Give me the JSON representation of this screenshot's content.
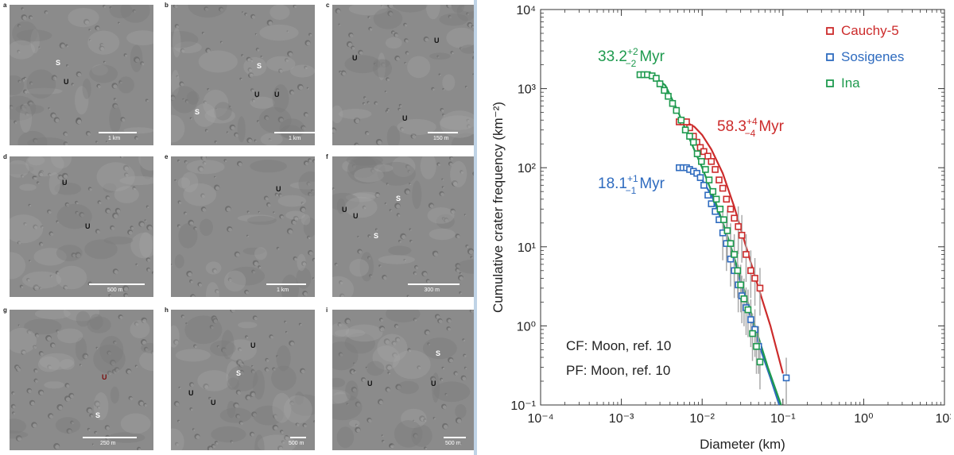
{
  "panels": [
    {
      "id": "a",
      "scale": "1 km",
      "labels": [
        {
          "t": "S",
          "c": "w"
        },
        {
          "t": "U",
          "c": "d"
        }
      ]
    },
    {
      "id": "b",
      "scale": "1 km",
      "labels": [
        {
          "t": "S",
          "c": "w"
        },
        {
          "t": "S",
          "c": "w"
        },
        {
          "t": "U",
          "c": "d"
        },
        {
          "t": "U",
          "c": "d"
        }
      ]
    },
    {
      "id": "c",
      "scale": "150 m",
      "labels": [
        {
          "t": "U",
          "c": "d"
        },
        {
          "t": "U",
          "c": "d"
        },
        {
          "t": "U",
          "c": "d"
        }
      ]
    },
    {
      "id": "d",
      "scale": "500 m",
      "labels": [
        {
          "t": "U",
          "c": "d"
        },
        {
          "t": "U",
          "c": "d"
        }
      ]
    },
    {
      "id": "e",
      "scale": "1 km",
      "labels": [
        {
          "t": "U",
          "c": "d"
        }
      ]
    },
    {
      "id": "f",
      "scale": "300 m",
      "labels": [
        {
          "t": "S",
          "c": "w"
        },
        {
          "t": "S",
          "c": "w"
        },
        {
          "t": "U",
          "c": "d"
        },
        {
          "t": "U",
          "c": "d"
        }
      ]
    },
    {
      "id": "g",
      "scale": "250 m",
      "labels": [
        {
          "t": "U",
          "c": "r"
        },
        {
          "t": "S",
          "c": "w"
        }
      ]
    },
    {
      "id": "h",
      "scale": "500 m",
      "labels": [
        {
          "t": "U",
          "c": "d"
        },
        {
          "t": "S",
          "c": "w"
        },
        {
          "t": "U",
          "c": "d"
        },
        {
          "t": "U",
          "c": "d"
        }
      ]
    },
    {
      "id": "i",
      "scale": "500 m",
      "labels": [
        {
          "t": "S",
          "c": "w"
        },
        {
          "t": "U",
          "c": "d"
        },
        {
          "t": "U",
          "c": "d"
        }
      ]
    }
  ],
  "chart_data": {
    "type": "scatter",
    "xlabel": "Diameter (km)",
    "ylabel": "Cumulative crater frequency (km⁻²)",
    "xlim": [
      0.0001,
      10
    ],
    "ylim": [
      0.1,
      10000
    ],
    "xscale": "log",
    "yscale": "log",
    "xticks": [
      "10⁻⁴",
      "10⁻³",
      "10⁻²",
      "10⁻¹",
      "10⁰",
      "10¹"
    ],
    "yticks": [
      "10⁻¹",
      "10⁰",
      "10¹",
      "10²",
      "10³",
      "10⁴"
    ],
    "legend_position": "top-right",
    "series": [
      {
        "name": "Cauchy-5",
        "color": "#cc2b2b",
        "points": [
          [
            0.0052,
            380
          ],
          [
            0.0058,
            380
          ],
          [
            0.0064,
            380
          ],
          [
            0.007,
            320
          ],
          [
            0.0078,
            250
          ],
          [
            0.0086,
            210
          ],
          [
            0.0095,
            180
          ],
          [
            0.0105,
            160
          ],
          [
            0.0118,
            140
          ],
          [
            0.013,
            120
          ],
          [
            0.0145,
            95
          ],
          [
            0.0162,
            70
          ],
          [
            0.018,
            55
          ],
          [
            0.02,
            40
          ],
          [
            0.0225,
            30
          ],
          [
            0.025,
            23
          ],
          [
            0.028,
            18
          ],
          [
            0.031,
            14
          ],
          [
            0.035,
            8
          ],
          [
            0.04,
            5
          ],
          [
            0.045,
            4
          ],
          [
            0.052,
            3
          ]
        ],
        "fit": [
          [
            0.0052,
            380
          ],
          [
            0.0065,
            372
          ],
          [
            0.008,
            330
          ],
          [
            0.01,
            260
          ],
          [
            0.013,
            170
          ],
          [
            0.018,
            85
          ],
          [
            0.025,
            32
          ],
          [
            0.035,
            10
          ],
          [
            0.05,
            3
          ],
          [
            0.07,
            1
          ],
          [
            0.1,
            0.25
          ]
        ]
      },
      {
        "name": "Sosigenes",
        "color": "#2e6bbf",
        "points": [
          [
            0.0052,
            100
          ],
          [
            0.0058,
            100
          ],
          [
            0.0064,
            100
          ],
          [
            0.007,
            95
          ],
          [
            0.0078,
            90
          ],
          [
            0.0086,
            85
          ],
          [
            0.0095,
            75
          ],
          [
            0.0105,
            60
          ],
          [
            0.0118,
            45
          ],
          [
            0.013,
            35
          ],
          [
            0.0145,
            28
          ],
          [
            0.0162,
            22
          ],
          [
            0.018,
            15
          ],
          [
            0.02,
            11
          ],
          [
            0.0225,
            7
          ],
          [
            0.025,
            5
          ],
          [
            0.028,
            3.3
          ],
          [
            0.031,
            2.4
          ],
          [
            0.035,
            1.7
          ],
          [
            0.04,
            1.2
          ],
          [
            0.045,
            0.9
          ],
          [
            0.05,
            0.55
          ],
          [
            0.11,
            0.22
          ]
        ],
        "fit": [
          [
            0.0052,
            100
          ],
          [
            0.0065,
            98
          ],
          [
            0.008,
            90
          ],
          [
            0.01,
            70
          ],
          [
            0.013,
            45
          ],
          [
            0.018,
            20
          ],
          [
            0.025,
            7
          ],
          [
            0.035,
            2
          ],
          [
            0.05,
            0.6
          ],
          [
            0.07,
            0.22
          ],
          [
            0.09,
            0.1
          ]
        ]
      },
      {
        "name": "Ina",
        "color": "#1e9a4e",
        "points": [
          [
            0.0017,
            1500
          ],
          [
            0.0019,
            1500
          ],
          [
            0.0021,
            1500
          ],
          [
            0.0024,
            1450
          ],
          [
            0.0027,
            1350
          ],
          [
            0.003,
            1150
          ],
          [
            0.0034,
            950
          ],
          [
            0.0038,
            800
          ],
          [
            0.0043,
            650
          ],
          [
            0.0048,
            530
          ],
          [
            0.0055,
            400
          ],
          [
            0.0062,
            300
          ],
          [
            0.007,
            250
          ],
          [
            0.0078,
            210
          ],
          [
            0.0087,
            150
          ],
          [
            0.0098,
            120
          ],
          [
            0.011,
            95
          ],
          [
            0.0122,
            70
          ],
          [
            0.0136,
            50
          ],
          [
            0.015,
            40
          ],
          [
            0.0167,
            30
          ],
          [
            0.0185,
            22
          ],
          [
            0.0205,
            16
          ],
          [
            0.0225,
            11
          ],
          [
            0.025,
            8
          ],
          [
            0.0275,
            5
          ],
          [
            0.03,
            3.3
          ],
          [
            0.033,
            2.2
          ],
          [
            0.037,
            1.6
          ],
          [
            0.042,
            0.8
          ],
          [
            0.047,
            0.55
          ],
          [
            0.052,
            0.35
          ]
        ],
        "fit": [
          [
            0.0017,
            1500
          ],
          [
            0.0025,
            1430
          ],
          [
            0.0035,
            1100
          ],
          [
            0.005,
            520
          ],
          [
            0.007,
            230
          ],
          [
            0.01,
            100
          ],
          [
            0.014,
            42
          ],
          [
            0.02,
            15
          ],
          [
            0.03,
            4
          ],
          [
            0.045,
            1
          ],
          [
            0.065,
            0.3
          ],
          [
            0.095,
            0.1
          ]
        ]
      }
    ],
    "annotations": [
      {
        "text": "33.2",
        "sup": "+2",
        "sub": "−2",
        "unit": "Myr",
        "color": "#1e9a4e"
      },
      {
        "text": "58.3",
        "sup": "+4",
        "sub": "−4",
        "unit": "Myr",
        "color": "#cc2b2b"
      },
      {
        "text": "18.1",
        "sup": "+1",
        "sub": "−1",
        "unit": "Myr",
        "color": "#2e6bbf"
      },
      {
        "text": "CF: Moon, ref. 10",
        "color": "#222222"
      },
      {
        "text": "PF: Moon, ref. 10",
        "color": "#222222"
      }
    ]
  }
}
